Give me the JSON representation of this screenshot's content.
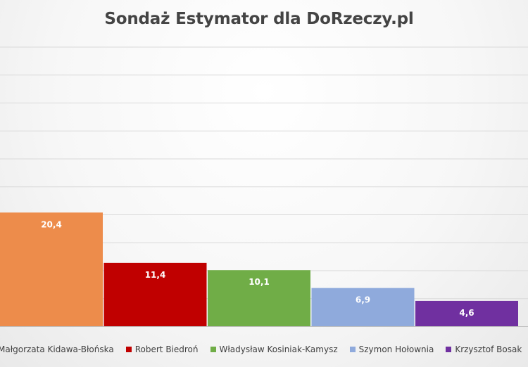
{
  "chart_data": {
    "type": "bar",
    "title": "Sondaż Estymator dla DoRzeczy.pl",
    "categories": [
      "Małgorzata Kidawa-Błońska",
      "Robert Biedroń",
      "Władysław Kosiniak-Kamysz",
      "Szymon Hołownia",
      "Krzysztof Bosak"
    ],
    "series": [
      {
        "name": "Małgorzata Kidawa-Błońska",
        "value": 20.4,
        "label": "20,4",
        "color": "#ed8c4b"
      },
      {
        "name": "Robert Biedroń",
        "value": 11.4,
        "label": "11,4",
        "color": "#c00000"
      },
      {
        "name": "Władysław Kosiniak-Kamysz",
        "value": 10.1,
        "label": "10,1",
        "color": "#70ad47"
      },
      {
        "name": "Szymon Hołownia",
        "value": 6.9,
        "label": "6,9",
        "color": "#8faadc"
      },
      {
        "name": "Krzysztof Bosak",
        "value": 4.6,
        "label": "4,6",
        "color": "#7030a0"
      }
    ],
    "ylim": [
      0,
      50
    ],
    "grid": true,
    "legend": "bottom"
  }
}
